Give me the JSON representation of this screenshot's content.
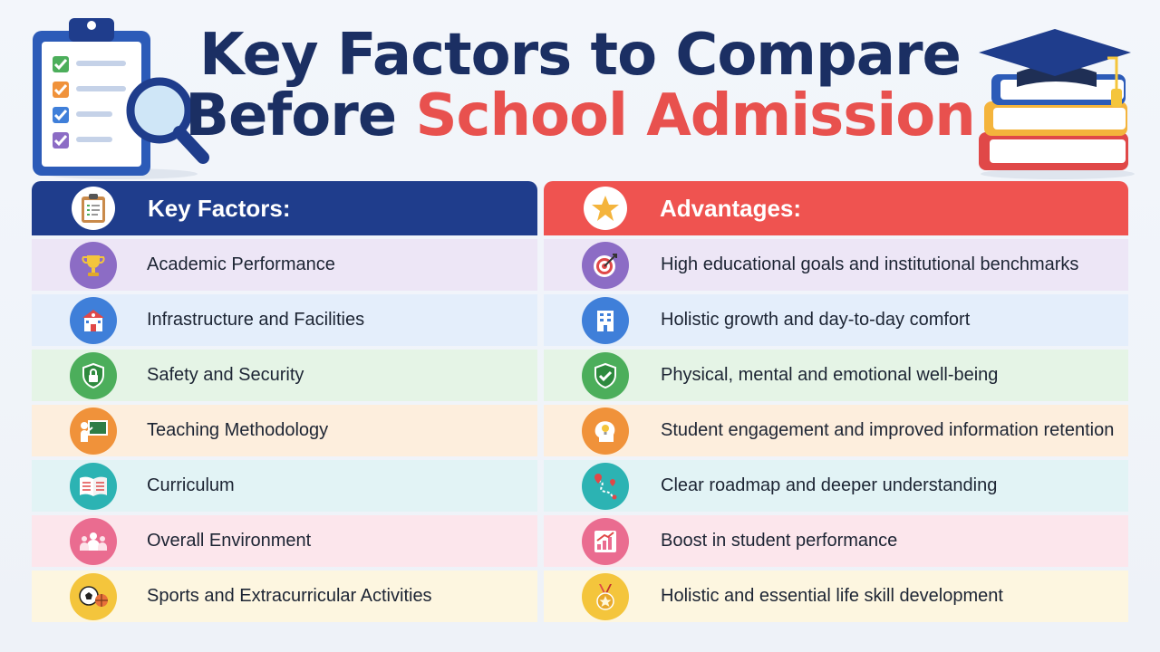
{
  "title": {
    "line1": "Key Factors to Compare",
    "line2_part1": "Before",
    "line2_part2": "School Admission"
  },
  "colors": {
    "navy": "#1f3d8c",
    "red": "#ef5350",
    "title_navy": "#1b2f63",
    "title_red": "#e8514e"
  },
  "left": {
    "header": "Key Factors:",
    "header_icon": "clipboard-icon",
    "items": [
      {
        "label": "Academic Performance",
        "icon": "trophy-icon"
      },
      {
        "label": "Infrastructure and Facilities",
        "icon": "school-building-icon"
      },
      {
        "label": "Safety and Security",
        "icon": "shield-lock-icon"
      },
      {
        "label": "Teaching Methodology",
        "icon": "teacher-board-icon"
      },
      {
        "label": "Curriculum",
        "icon": "open-book-icon"
      },
      {
        "label": "Overall Environment",
        "icon": "people-group-icon"
      },
      {
        "label": "Sports and Extracurricular Activities",
        "icon": "sports-balls-icon"
      }
    ]
  },
  "right": {
    "header": "Advantages:",
    "header_icon": "star-icon",
    "items": [
      {
        "label": "High educational goals and institutional benchmarks",
        "icon": "target-icon"
      },
      {
        "label": "Holistic growth and day-to-day comfort",
        "icon": "building-icon"
      },
      {
        "label": "Physical, mental and emotional well-being",
        "icon": "shield-check-icon"
      },
      {
        "label": "Student engagement and improved information retention",
        "icon": "head-lightbulb-icon"
      },
      {
        "label": "Clear roadmap and deeper understanding",
        "icon": "roadmap-icon"
      },
      {
        "label": "Boost in student performance",
        "icon": "growth-chart-icon"
      },
      {
        "label": "Holistic and essential life skill development",
        "icon": "medal-icon"
      }
    ]
  }
}
